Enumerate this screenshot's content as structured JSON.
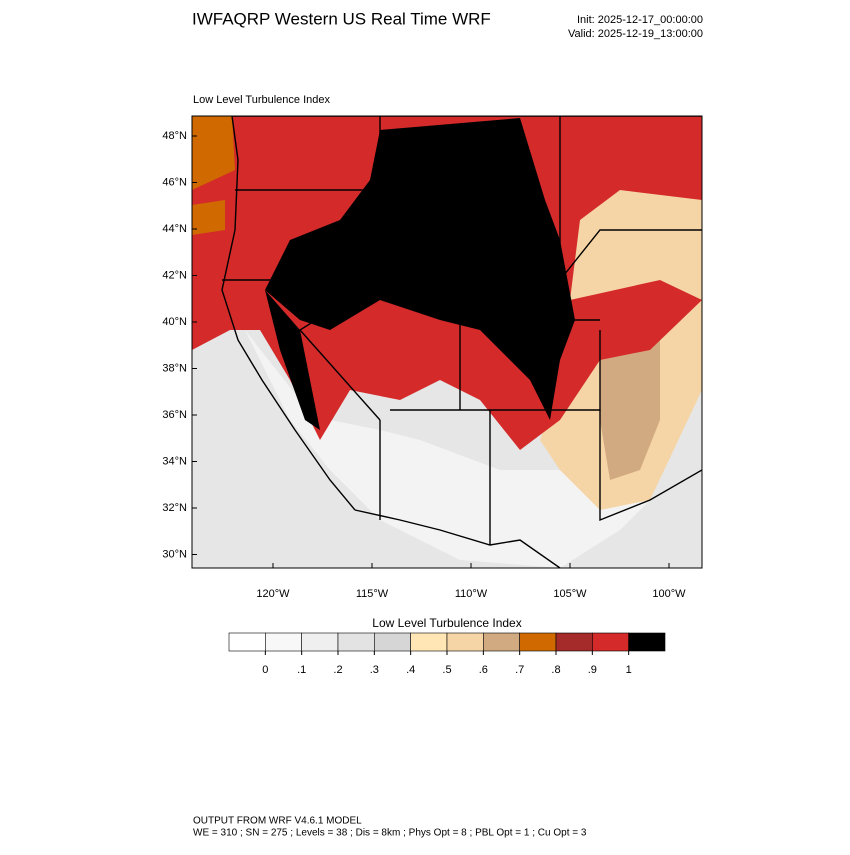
{
  "header": {
    "title": "IWFAQRP Western US Real Time WRF",
    "init": "Init: 2025-12-17_00:00:00",
    "valid": "Valid: 2025-12-19_13:00:00"
  },
  "map": {
    "title": "Low Level Turbulence Index",
    "lat_labels": [
      "48°N",
      "46°N",
      "44°N",
      "42°N",
      "40°N",
      "38°N",
      "36°N",
      "34°N",
      "32°N",
      "30°N"
    ],
    "lon_labels": [
      "120°W",
      "115°W",
      "110°W",
      "105°W",
      "100°W"
    ]
  },
  "colorbar": {
    "title": "Low Level Turbulence Index",
    "colors": [
      "#ffffff",
      "#f8f8f8",
      "#efefef",
      "#e3e3e3",
      "#d6d6d6",
      "#ffe6b4",
      "#f5d5a5",
      "#d2aa82",
      "#d06a00",
      "#a52a2a",
      "#d42a2a",
      "#000000"
    ],
    "ticks": [
      0,
      {
        "value": 0.1,
        "label": ".1"
      },
      {
        "value": 0.2,
        "label": ".2"
      },
      {
        "value": 0.3,
        "label": ".3"
      },
      {
        "value": 0.4,
        "label": ".4"
      },
      {
        "value": 0.5,
        "label": ".5"
      },
      {
        "value": 0.6,
        "label": ".6"
      },
      {
        "value": 0.7,
        "label": ".7"
      },
      {
        "value": 0.8,
        "label": ".8"
      },
      {
        "value": 0.9,
        "label": ".9"
      },
      1
    ]
  },
  "footer": {
    "line1": "OUTPUT FROM WRF V4.6.1 MODEL",
    "line2": "WE = 310 ; SN = 275 ; Levels = 38 ; Dis = 8km ; Phys Opt = 8 ; PBL Opt = 1 ; Cu Opt = 3"
  }
}
